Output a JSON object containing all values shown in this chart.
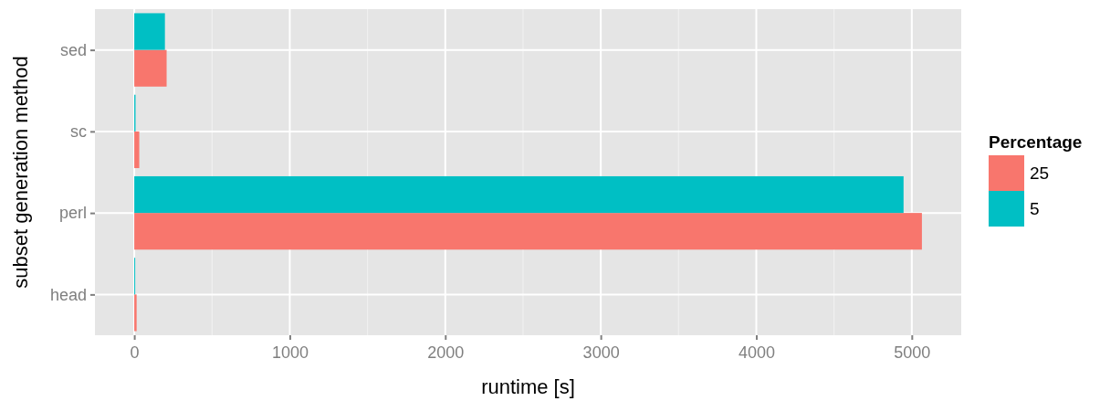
{
  "chart_data": {
    "type": "bar",
    "orientation": "horizontal",
    "xlabel": "runtime [s]",
    "ylabel": "subset generation method",
    "legend_title": "Percentage",
    "categories": [
      "sed",
      "sc",
      "perl",
      "head"
    ],
    "series": [
      {
        "name": "25",
        "color": "#f8766d",
        "values": [
          208,
          32,
          5065,
          15
        ]
      },
      {
        "name": "5",
        "color": "#00bfc4",
        "values": [
          197,
          8,
          4947,
          6
        ]
      }
    ],
    "xlim": [
      -253,
      5318
    ],
    "xticks": [
      0,
      1000,
      2000,
      3000,
      4000,
      5000
    ],
    "grid": true,
    "legend": "right"
  }
}
